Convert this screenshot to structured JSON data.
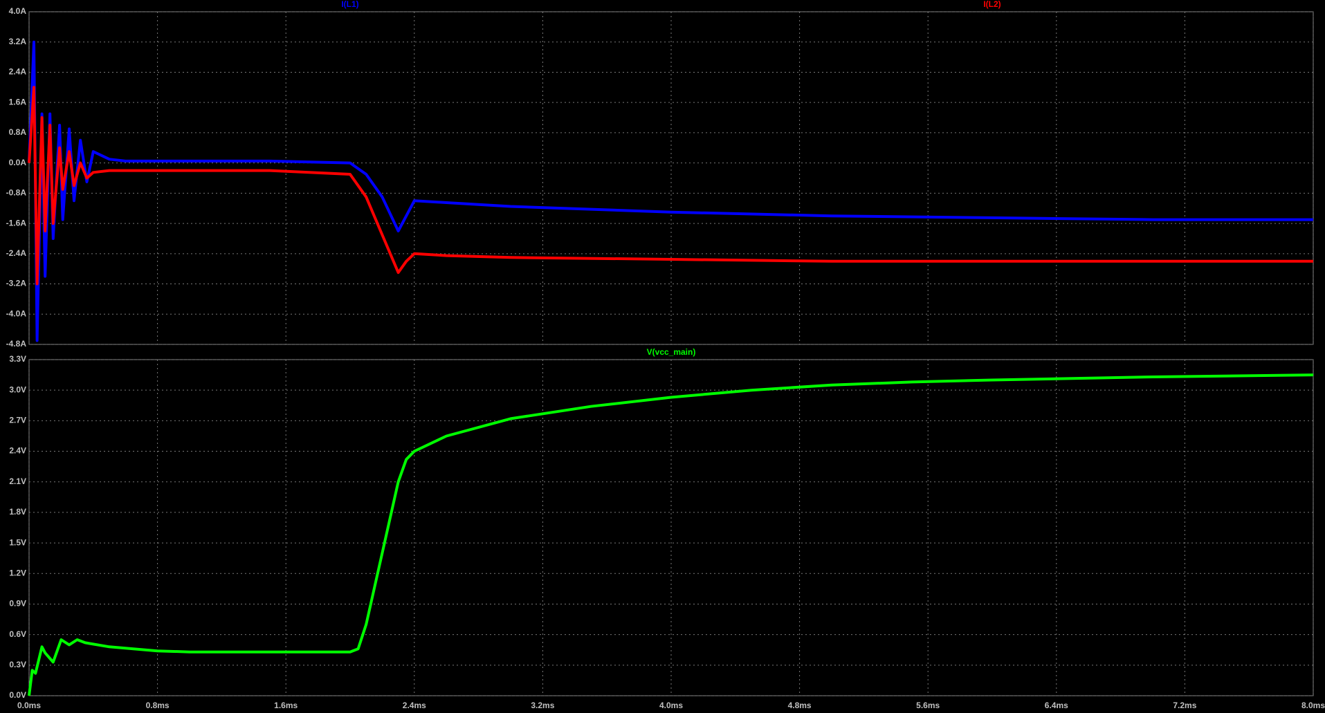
{
  "chart_data": [
    {
      "type": "line",
      "x": [
        0,
        0.03,
        0.05,
        0.08,
        0.1,
        0.13,
        0.15,
        0.19,
        0.21,
        0.25,
        0.28,
        0.32,
        0.36,
        0.4,
        0.5,
        0.6,
        0.8,
        1.0,
        1.5,
        2.0,
        2.1,
        2.2,
        2.3,
        2.35,
        2.4,
        2.6,
        3.0,
        4.0,
        5.0,
        6.0,
        7.0,
        8.0
      ],
      "series": [
        {
          "name": "I(L1)",
          "color": "#0000ff",
          "values": [
            0,
            3.2,
            -4.7,
            1.3,
            -3.0,
            1.3,
            -2.0,
            1.0,
            -1.5,
            0.9,
            -1.0,
            0.6,
            -0.5,
            0.3,
            0.1,
            0.05,
            0.05,
            0.05,
            0.05,
            0.0,
            -0.3,
            -0.9,
            -1.8,
            -1.4,
            -1.0,
            -1.05,
            -1.15,
            -1.3,
            -1.4,
            -1.45,
            -1.5,
            -1.5
          ]
        },
        {
          "name": "I(L2)",
          "color": "#ff0000",
          "values": [
            0,
            2.0,
            -3.2,
            1.2,
            -1.8,
            1.0,
            -1.6,
            0.4,
            -0.7,
            0.3,
            -0.6,
            0.0,
            -0.4,
            -0.25,
            -0.2,
            -0.2,
            -0.2,
            -0.2,
            -0.2,
            -0.3,
            -0.9,
            -1.9,
            -2.9,
            -2.6,
            -2.4,
            -2.45,
            -2.5,
            -2.55,
            -2.6,
            -2.6,
            -2.6,
            -2.6
          ]
        }
      ],
      "xlim": [
        0,
        8
      ],
      "xticks": [
        0,
        0.8,
        1.6,
        2.4,
        3.2,
        4,
        4.8,
        5.6,
        6.4,
        7.2,
        8
      ],
      "ylim": [
        -4.8,
        4.0
      ],
      "yticks": [
        {
          "value": 4.0,
          "label": "4.0A"
        },
        {
          "value": 3.2,
          "label": "3.2A"
        },
        {
          "value": 2.4,
          "label": "2.4A"
        },
        {
          "value": 1.6,
          "label": "1.6A"
        },
        {
          "value": 0.8,
          "label": "0.8A"
        },
        {
          "value": 0,
          "label": "0.0A"
        },
        {
          "value": -0.8,
          "label": "-0.8A"
        },
        {
          "value": -1.6,
          "label": "-1.6A"
        },
        {
          "value": -2.4,
          "label": "-2.4A"
        },
        {
          "value": -3.2,
          "label": "-3.2A"
        },
        {
          "value": -4.0,
          "label": "-4.0A"
        },
        {
          "value": -4.8,
          "label": "-4.8A"
        }
      ],
      "grid": true
    },
    {
      "type": "line",
      "x": [
        0,
        0.02,
        0.04,
        0.08,
        0.1,
        0.15,
        0.2,
        0.25,
        0.3,
        0.35,
        0.5,
        0.8,
        1.0,
        1.5,
        2.0,
        2.05,
        2.1,
        2.2,
        2.3,
        2.35,
        2.4,
        2.6,
        3.0,
        3.5,
        4.0,
        4.5,
        5.0,
        5.5,
        6.0,
        7.0,
        8.0
      ],
      "series": [
        {
          "name": "V(vcc_main)",
          "color": "#00ff00",
          "values": [
            0,
            0.25,
            0.22,
            0.48,
            0.42,
            0.33,
            0.55,
            0.5,
            0.55,
            0.52,
            0.48,
            0.44,
            0.43,
            0.43,
            0.43,
            0.46,
            0.7,
            1.4,
            2.1,
            2.32,
            2.4,
            2.55,
            2.72,
            2.84,
            2.93,
            3.0,
            3.05,
            3.08,
            3.1,
            3.13,
            3.15
          ]
        }
      ],
      "xlim": [
        0,
        8
      ],
      "xticks": [
        {
          "value": 0,
          "label": "0.0ms"
        },
        {
          "value": 0.8,
          "label": "0.8ms"
        },
        {
          "value": 1.6,
          "label": "1.6ms"
        },
        {
          "value": 2.4,
          "label": "2.4ms"
        },
        {
          "value": 3.2,
          "label": "3.2ms"
        },
        {
          "value": 4.0,
          "label": "4.0ms"
        },
        {
          "value": 4.8,
          "label": "4.8ms"
        },
        {
          "value": 5.6,
          "label": "5.6ms"
        },
        {
          "value": 6.4,
          "label": "6.4ms"
        },
        {
          "value": 7.2,
          "label": "7.2ms"
        },
        {
          "value": 8.0,
          "label": "8.0ms"
        }
      ],
      "ylim": [
        0,
        3.3
      ],
      "yticks": [
        {
          "value": 3.3,
          "label": "3.3V"
        },
        {
          "value": 3.0,
          "label": "3.0V"
        },
        {
          "value": 2.7,
          "label": "2.7V"
        },
        {
          "value": 2.4,
          "label": "2.4V"
        },
        {
          "value": 2.1,
          "label": "2.1V"
        },
        {
          "value": 1.8,
          "label": "1.8V"
        },
        {
          "value": 1.5,
          "label": "1.5V"
        },
        {
          "value": 1.2,
          "label": "1.2V"
        },
        {
          "value": 0.9,
          "label": "0.9V"
        },
        {
          "value": 0.6,
          "label": "0.6V"
        },
        {
          "value": 0.3,
          "label": "0.3V"
        },
        {
          "value": 0,
          "label": "0.0V"
        }
      ],
      "grid": true
    }
  ]
}
